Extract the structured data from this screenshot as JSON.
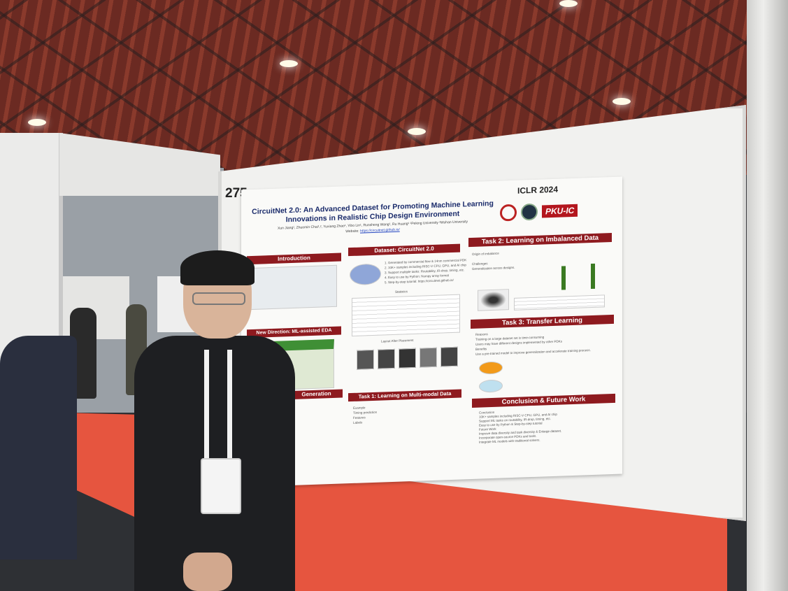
{
  "booth": {
    "number": "275"
  },
  "poster": {
    "title": "CircuitNet 2.0: An Advanced Dataset for Promoting Machine Learning Innovations in Realistic Chip Design Environment",
    "authors": "Xun Jiang¹, Zhuomin Chai¹,², Yuxiang Zhao¹, Yibo Lin¹, Runsheng Wang¹, Ru Huang¹   ¹Peking University ²Wuhan University",
    "website_label": "Website:",
    "website": "https://circuitnet.github.io/",
    "conference": "ICLR 2024",
    "logo_text": "PKU-IC",
    "sections": {
      "introduction": "Introduction",
      "new_direction": "New Direction: ML-assisted EDA",
      "generation": "Generation",
      "dataset": "Dataset: CircuitNet 2.0",
      "task1": "Task 1: Learning on Multi-modal Data",
      "task2": "Task 2: Learning on Imbalanced Data",
      "task3": "Task 3: Transfer Learning",
      "conclusion": "Conclusion & Future Work"
    },
    "dataset_points": [
      "1. Generated by commercial flow & 14nm commercial PDK",
      "2. 10K+ samples including RISC-V CPU, GPU, and AI chip",
      "3. Support multiple tasks: Routability, IR-drop, timing, etc.",
      "4. Easy to use by Python: Numpy array format",
      "5. Step-by-step tutorial: https://circuitnet.github.io/"
    ],
    "statistics_label": "Statistics",
    "layout_label": "Layout After Placement",
    "task2_points": [
      "Origin of imbalance",
      "Challenges",
      "Generalization across designs."
    ],
    "task3_points": [
      "Reasons",
      "Training on a large dataset set is time-consuming",
      "Users may have different designs implemented by other PDKs",
      "Benefits",
      "Use a pre-trained model to improve generalization and accelerate training process."
    ],
    "task1_points": [
      "Example",
      "Timing prediction",
      "Features",
      "Labels"
    ],
    "conclusion_points": [
      "Conclusion",
      "10K+ samples including RISC-V CPU, GPU, and AI chip",
      "Support ML tasks on routability, IR-drop, timing, etc.",
      "Easy to use by Python & Step-by-step tutorial",
      "Future Work",
      "Improve data diversity and task diversity & Enlarge dataset.",
      "Incorporate open-source PDKs and tools.",
      "Integrate ML models with traditional solvers."
    ]
  },
  "colors": {
    "header": "#8e1a1f",
    "carpet": "#e6553f",
    "title": "#1a2b6b"
  }
}
